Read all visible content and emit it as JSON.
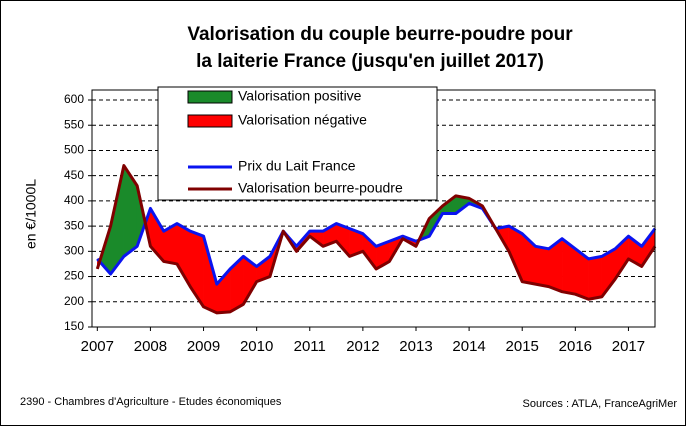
{
  "chart_data": {
    "type": "line",
    "title": [
      "Valorisation du couple beurre-poudre pour",
      "la laiterie France (jusqu'en juillet 2017)"
    ],
    "ylabel": "en €/1000L",
    "x": [
      2007.0,
      2007.25,
      2007.5,
      2007.75,
      2008.0,
      2008.25,
      2008.5,
      2008.75,
      2009.0,
      2009.25,
      2009.5,
      2009.75,
      2010.0,
      2010.25,
      2010.5,
      2010.75,
      2011.0,
      2011.25,
      2011.5,
      2011.75,
      2012.0,
      2012.25,
      2012.5,
      2012.75,
      2013.0,
      2013.25,
      2013.5,
      2013.75,
      2014.0,
      2014.25,
      2014.5,
      2014.75,
      2015.0,
      2015.25,
      2015.5,
      2015.75,
      2016.0,
      2016.25,
      2016.5,
      2016.75,
      2017.0,
      2017.25,
      2017.5
    ],
    "series": [
      {
        "name": "Prix du Lait France",
        "color": "#0a14f0",
        "values": [
          285,
          255,
          290,
          310,
          385,
          340,
          355,
          340,
          330,
          235,
          265,
          290,
          270,
          290,
          340,
          310,
          340,
          340,
          355,
          345,
          335,
          310,
          320,
          330,
          320,
          330,
          375,
          375,
          395,
          385,
          345,
          350,
          335,
          310,
          305,
          325,
          305,
          285,
          290,
          305,
          330,
          310,
          345
        ]
      },
      {
        "name": "Valorisation beurre-poudre",
        "color": "#800000",
        "values": [
          265,
          350,
          470,
          430,
          310,
          280,
          275,
          230,
          190,
          178,
          180,
          195,
          240,
          250,
          340,
          300,
          330,
          310,
          320,
          290,
          300,
          265,
          280,
          325,
          310,
          365,
          390,
          410,
          405,
          390,
          345,
          300,
          240,
          235,
          230,
          220,
          215,
          205,
          210,
          245,
          285,
          270,
          310
        ]
      }
    ],
    "fill_legend": [
      {
        "name": "Valorisation positive",
        "color": "#1a8a2a"
      },
      {
        "name": "Valorisation négative",
        "color": "#ff0000"
      }
    ],
    "xlim": [
      2006.9,
      2017.5
    ],
    "xticks": [
      2007,
      2008,
      2009,
      2010,
      2011,
      2012,
      2013,
      2014,
      2015,
      2016,
      2017
    ],
    "ylim": [
      150,
      600
    ],
    "yticks": [
      150,
      200,
      250,
      300,
      350,
      400,
      450,
      500,
      550,
      600
    ],
    "grid": true,
    "footer_left": "2390 - Chambres d'Agriculture - Etudes économiques",
    "footer_right": "Sources : ATLA, FranceAgriMer"
  }
}
